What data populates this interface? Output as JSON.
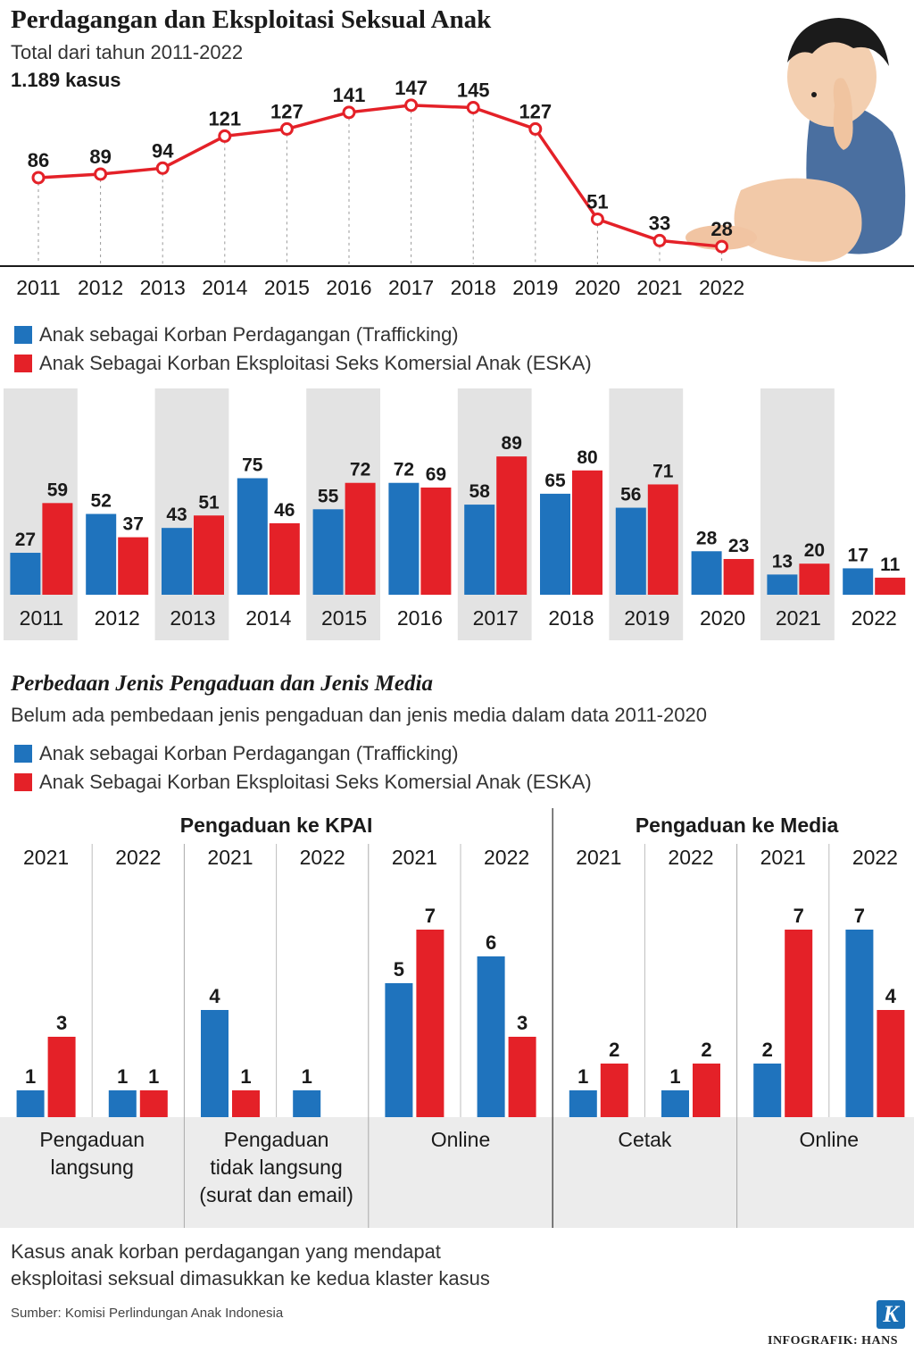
{
  "header": {
    "title": "Perdagangan dan Eksploitasi Seksual Anak",
    "subtitle": "Total dari tahun 2011-2022",
    "total": "1.189 kasus"
  },
  "legend": {
    "trafficking": "Anak sebagai Korban Perdagangan (Trafficking)",
    "eska": "Anak Sebagai Korban Eksploitasi Seks Komersial Anak (ESKA)"
  },
  "colors": {
    "blue": "#1f73bd",
    "red": "#e42128",
    "line": "#e42128",
    "band": "#e3e3e3",
    "zone": "#ececec"
  },
  "section2": {
    "title": "Perbedaan Jenis Pengaduan dan Jenis Media",
    "subtitle": "Belum ada pembedaan jenis pengaduan dan jenis media dalam data 2011-2020"
  },
  "footer": {
    "note_line1": "Kasus anak korban perdagangan yang mendapat",
    "note_line2": "eksploitasi seksual dimasukkan ke kedua klaster kasus",
    "source": "Sumber: Komisi Perlindungan Anak Indonesia",
    "credit": "INFOGRAFIK: HANS",
    "logo": "K"
  },
  "illustration": {
    "icon": "baby-illustration"
  },
  "chart_data": [
    {
      "type": "line",
      "title": "Perdagangan dan Eksploitasi Seksual Anak",
      "x": [
        "2011",
        "2012",
        "2013",
        "2014",
        "2015",
        "2016",
        "2017",
        "2018",
        "2019",
        "2020",
        "2021",
        "2022"
      ],
      "values": [
        86,
        89,
        94,
        121,
        127,
        141,
        147,
        145,
        127,
        51,
        33,
        28
      ],
      "ylim": [
        0,
        160
      ],
      "grid": "vertical dotted",
      "xlabel": "",
      "ylabel": ""
    },
    {
      "type": "bar",
      "categories": [
        "2011",
        "2012",
        "2013",
        "2014",
        "2015",
        "2016",
        "2017",
        "2018",
        "2019",
        "2020",
        "2021",
        "2022"
      ],
      "series": [
        {
          "name": "Anak sebagai Korban Perdagangan (Trafficking)",
          "values": [
            27,
            52,
            43,
            75,
            55,
            72,
            58,
            65,
            56,
            28,
            13,
            17
          ]
        },
        {
          "name": "Anak Sebagai Korban Eksploitasi Seks Komersial Anak (ESKA)",
          "values": [
            59,
            37,
            51,
            46,
            72,
            69,
            89,
            80,
            71,
            23,
            20,
            11
          ]
        }
      ],
      "ylim": [
        0,
        100
      ]
    },
    {
      "type": "bar",
      "title": "Perbedaan Jenis Pengaduan dan Jenis Media",
      "ylim": [
        0,
        8
      ],
      "groups": [
        {
          "name": "Pengaduan ke KPAI",
          "subgroups": [
            {
              "label_lines": [
                "Pengaduan",
                "langsung"
              ],
              "years": [
                {
                  "year": "2021",
                  "trafficking": 1,
                  "eska": 3
                },
                {
                  "year": "2022",
                  "trafficking": 1,
                  "eska": 1
                }
              ]
            },
            {
              "label_lines": [
                "Pengaduan",
                "tidak langsung",
                "(surat dan email)"
              ],
              "years": [
                {
                  "year": "2021",
                  "trafficking": 4,
                  "eska": 1
                },
                {
                  "year": "2022",
                  "trafficking": 1,
                  "eska": null
                }
              ]
            },
            {
              "label_lines": [
                "Online"
              ],
              "years": [
                {
                  "year": "2021",
                  "trafficking": 5,
                  "eska": 7
                },
                {
                  "year": "2022",
                  "trafficking": 6,
                  "eska": 3
                }
              ]
            }
          ]
        },
        {
          "name": "Pengaduan ke Media",
          "subgroups": [
            {
              "label_lines": [
                "Cetak"
              ],
              "years": [
                {
                  "year": "2021",
                  "trafficking": 1,
                  "eska": 2
                },
                {
                  "year": "2022",
                  "trafficking": 1,
                  "eska": 2
                }
              ]
            },
            {
              "label_lines": [
                "Online"
              ],
              "years": [
                {
                  "year": "2021",
                  "trafficking": 2,
                  "eska": 7
                },
                {
                  "year": "2022",
                  "trafficking": 7,
                  "eska": 4
                }
              ]
            }
          ]
        }
      ]
    }
  ]
}
